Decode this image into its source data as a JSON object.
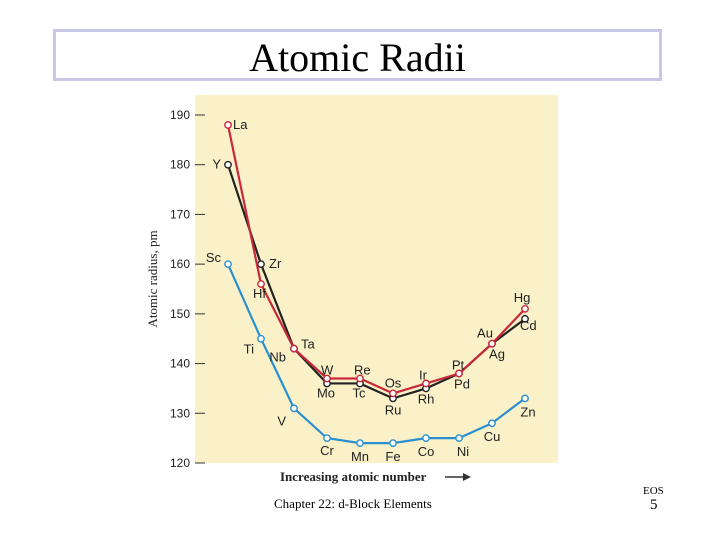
{
  "slide": {
    "title": "Atomic Radii",
    "footer": "Chapter 22: d-Block Elements",
    "footer_right_label": "EOS",
    "page_number": "5"
  },
  "chart_data": {
    "type": "line",
    "title": "",
    "xlabel": "Increasing atomic number",
    "ylabel": "Atomic radius, pm",
    "ylim": [
      120,
      190
    ],
    "yticks": [
      120,
      130,
      140,
      150,
      160,
      170,
      180,
      190
    ],
    "grid": false,
    "background": "#fbf1c8",
    "positions": 10,
    "series": [
      {
        "color": "#2a8fd0",
        "points": [
          {
            "x": 1,
            "y": 160,
            "label": "Sc"
          },
          {
            "x": 2,
            "y": 145,
            "label": "Ti"
          },
          {
            "x": 3,
            "y": 131,
            "label": "V"
          },
          {
            "x": 4,
            "y": 125,
            "label": "Cr"
          },
          {
            "x": 5,
            "y": 124,
            "label": "Mn"
          },
          {
            "x": 6,
            "y": 124,
            "label": "Fe"
          },
          {
            "x": 7,
            "y": 125,
            "label": "Co"
          },
          {
            "x": 8,
            "y": 125,
            "label": "Ni"
          },
          {
            "x": 9,
            "y": 128,
            "label": "Cu"
          },
          {
            "x": 10,
            "y": 133,
            "label": "Zn"
          }
        ]
      },
      {
        "color": "#222222",
        "points": [
          {
            "x": 1,
            "y": 180,
            "label": "Y"
          },
          {
            "x": 2,
            "y": 160,
            "label": "Zr"
          },
          {
            "x": 3,
            "y": 143,
            "label": "Nb"
          },
          {
            "x": 4,
            "y": 136,
            "label": "Mo"
          },
          {
            "x": 5,
            "y": 136,
            "label": "Tc"
          },
          {
            "x": 6,
            "y": 133,
            "label": "Ru"
          },
          {
            "x": 7,
            "y": 135,
            "label": "Rh"
          },
          {
            "x": 8,
            "y": 138,
            "label": "Pd"
          },
          {
            "x": 9,
            "y": 144,
            "label": "Ag"
          },
          {
            "x": 10,
            "y": 149,
            "label": "Cd"
          }
        ]
      },
      {
        "color": "#c8283c",
        "points": [
          {
            "x": 1,
            "y": 188,
            "label": "La"
          },
          {
            "x": 2,
            "y": 156,
            "label": "Hf"
          },
          {
            "x": 3,
            "y": 143,
            "label": "Ta"
          },
          {
            "x": 4,
            "y": 137,
            "label": "W"
          },
          {
            "x": 5,
            "y": 137,
            "label": "Re"
          },
          {
            "x": 6,
            "y": 134,
            "label": "Os"
          },
          {
            "x": 7,
            "y": 136,
            "label": "Ir"
          },
          {
            "x": 8,
            "y": 138,
            "label": "Pt"
          },
          {
            "x": 9,
            "y": 144,
            "label": "Au"
          },
          {
            "x": 10,
            "y": 151,
            "label": "Hg"
          }
        ]
      }
    ]
  }
}
